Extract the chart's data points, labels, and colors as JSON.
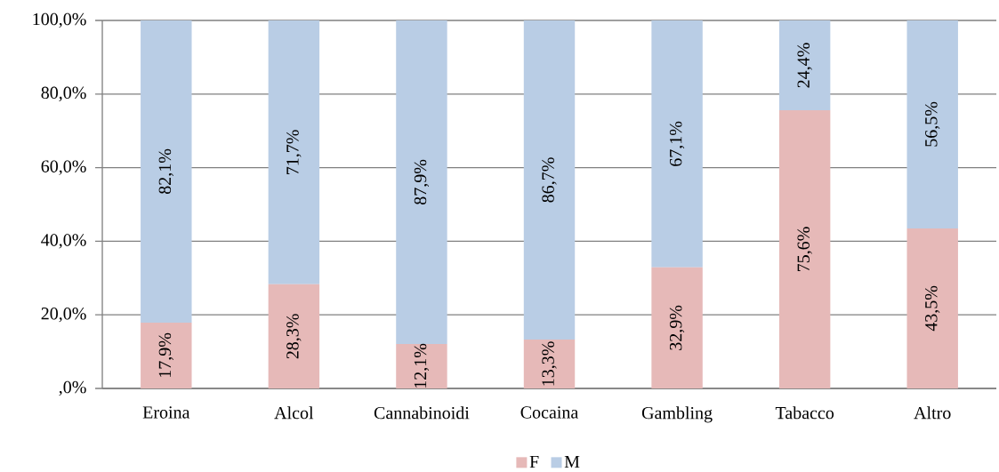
{
  "chart_data": {
    "type": "bar",
    "stacked": true,
    "categories": [
      "Eroina",
      "Alcol",
      "Cannabinoidi",
      "Cocaina",
      "Gambling",
      "Tabacco",
      "Altro"
    ],
    "series": [
      {
        "name": "F",
        "color": "#e6b9b8",
        "values": [
          17.9,
          28.3,
          12.1,
          13.3,
          32.9,
          75.6,
          43.5
        ],
        "value_labels": [
          "17,9%",
          "28,3%",
          "12,1%",
          "13,3%",
          "32,9%",
          "75,6%",
          "43,5%"
        ]
      },
      {
        "name": "M",
        "color": "#b9cde5",
        "values": [
          82.1,
          71.7,
          87.9,
          86.7,
          67.1,
          24.4,
          56.5
        ],
        "value_labels": [
          "82,1%",
          "71,7%",
          "87,9%",
          "86,7%",
          "67,1%",
          "24,4%",
          "56,5%"
        ]
      }
    ],
    "ylim": [
      0,
      100
    ],
    "yticks": [
      {
        "value": 0,
        "label": ",0%"
      },
      {
        "value": 20,
        "label": "20,0%"
      },
      {
        "value": 40,
        "label": "40,0%"
      },
      {
        "value": 60,
        "label": "60,0%"
      },
      {
        "value": 80,
        "label": "80,0%"
      },
      {
        "value": 100,
        "label": "100,0%"
      }
    ],
    "grid": "y",
    "legend": "bottom"
  }
}
